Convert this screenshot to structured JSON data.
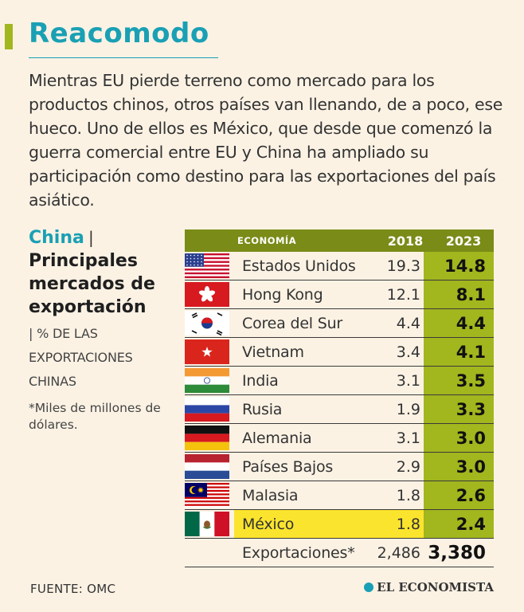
{
  "title": "Reacomodo",
  "intro": "Mientras EU pierde terreno como mercado para los productos chinos, otros países van llenando, de a poco, ese hueco. Uno de ellos es México, que desde que comenzó la guerra comercial entre EU y China ha ampliado su participación como destino para las exportaciones del país asiático.",
  "side": {
    "country": "China",
    "separator": "|",
    "heading": "Principales mercados de exportación",
    "unit_sep": "|",
    "unit": "% DE LAS EXPORTACIONES CHINAS",
    "note": "*Miles de millones de dólares."
  },
  "colors": {
    "teal": "#1aa0b4",
    "olive": "#7a8b17",
    "green": "#a2b61e",
    "yellow": "#fbe42d"
  },
  "chart_data": {
    "type": "table",
    "title": "China | Principales mercados de exportación",
    "columns": [
      "ECONOMÍA",
      "2018",
      "2023"
    ],
    "rows": [
      {
        "economy": "Estados Unidos",
        "v2018": "19.3",
        "v2023": "14.8",
        "flag": "us-flag-icon"
      },
      {
        "economy": "Hong Kong",
        "v2018": "12.1",
        "v2023": "8.1",
        "flag": "hong-kong-flag-icon"
      },
      {
        "economy": "Corea del Sur",
        "v2018": "4.4",
        "v2023": "4.4",
        "flag": "south-korea-flag-icon"
      },
      {
        "economy": "Vietnam",
        "v2018": "3.4",
        "v2023": "4.1",
        "flag": "vietnam-flag-icon"
      },
      {
        "economy": "India",
        "v2018": "3.1",
        "v2023": "3.5",
        "flag": "india-flag-icon"
      },
      {
        "economy": "Rusia",
        "v2018": "1.9",
        "v2023": "3.3",
        "flag": "russia-flag-icon"
      },
      {
        "economy": "Alemania",
        "v2018": "3.1",
        "v2023": "3.0",
        "flag": "germany-flag-icon"
      },
      {
        "economy": "Países Bajos",
        "v2018": "2.9",
        "v2023": "3.0",
        "flag": "netherlands-flag-icon"
      },
      {
        "economy": "Malasia",
        "v2018": "1.8",
        "v2023": "2.6",
        "flag": "malaysia-flag-icon"
      },
      {
        "economy": "México",
        "v2018": "1.8",
        "v2023": "2.4",
        "flag": "mexico-flag-icon"
      }
    ],
    "total": {
      "label": "Exportaciones*",
      "v2018": "2,486",
      "v2023": "3,380"
    },
    "highlight": "México"
  },
  "footer": {
    "source": "FUENTE:  OMC",
    "brand": "EL ECONOMISTA"
  }
}
